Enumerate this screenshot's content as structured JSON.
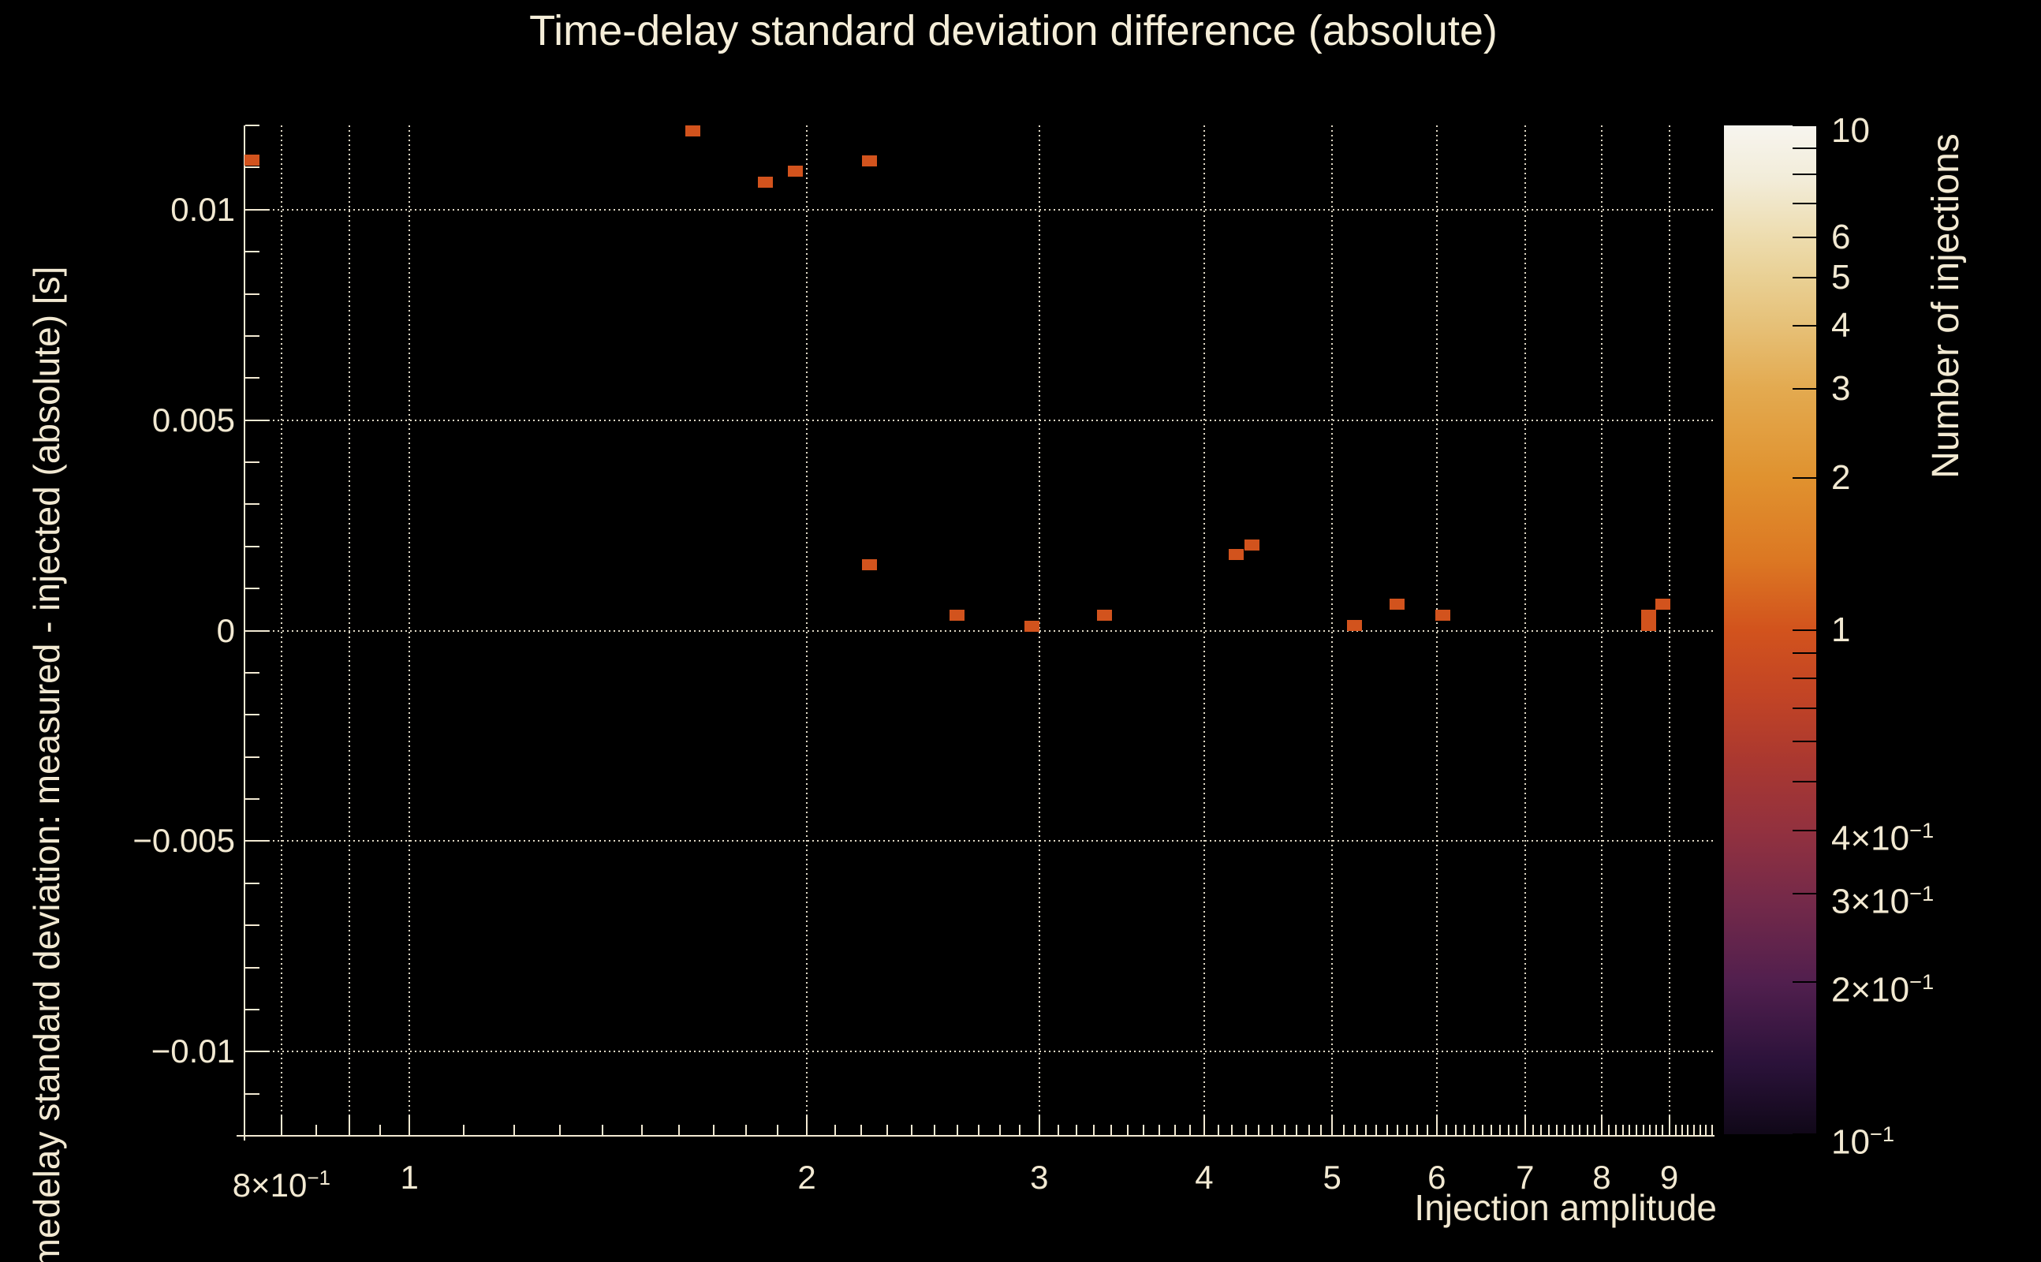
{
  "page": {
    "background": "#000000",
    "foreground": "#f2e9d2",
    "point_color": "#d2531d"
  },
  "chart_data": {
    "type": "heatmap",
    "title": "Time-delay standard deviation difference (absolute)",
    "xlabel": "Injection amplitude",
    "ylabel": "Timedelay standard deviation: measured - injected (absolute) [s]",
    "colorbar_label": "Number of injections",
    "x_scale": "log",
    "x_range": [
      0.75,
      9.74
    ],
    "y_scale": "linear",
    "y_range": [
      -0.012,
      0.012
    ],
    "color_scale": "log",
    "color_range": [
      0.1,
      10
    ],
    "grid": true,
    "x_gridlines": [
      0.8,
      0.9,
      1,
      2,
      3,
      4,
      5,
      6,
      7,
      8,
      9
    ],
    "x_tick_labels": [
      {
        "value": 0.8,
        "label": "8×10^−1"
      },
      {
        "value": 1,
        "label": "1"
      },
      {
        "value": 2,
        "label": "2"
      },
      {
        "value": 3,
        "label": "3"
      },
      {
        "value": 4,
        "label": "4"
      },
      {
        "value": 5,
        "label": "5"
      },
      {
        "value": 6,
        "label": "6"
      },
      {
        "value": 7,
        "label": "7"
      },
      {
        "value": 8,
        "label": "8"
      },
      {
        "value": 9,
        "label": "9"
      }
    ],
    "y_ticks": [
      {
        "value": 0.01,
        "label": "0.01"
      },
      {
        "value": 0.005,
        "label": "0.005"
      },
      {
        "value": 0,
        "label": "0"
      },
      {
        "value": -0.005,
        "label": "−0.005"
      },
      {
        "value": -0.01,
        "label": "−0.01"
      }
    ],
    "colorbar_ticks": [
      {
        "value": 10,
        "label": "10"
      },
      {
        "value": 9,
        "label": ""
      },
      {
        "value": 8,
        "label": ""
      },
      {
        "value": 7,
        "label": ""
      },
      {
        "value": 6,
        "label": "6"
      },
      {
        "value": 5,
        "label": "5"
      },
      {
        "value": 4,
        "label": "4"
      },
      {
        "value": 3,
        "label": "3"
      },
      {
        "value": 2,
        "label": "2"
      },
      {
        "value": 1,
        "label": "1"
      },
      {
        "value": 0.9,
        "label": ""
      },
      {
        "value": 0.8,
        "label": ""
      },
      {
        "value": 0.7,
        "label": ""
      },
      {
        "value": 0.6,
        "label": ""
      },
      {
        "value": 0.5,
        "label": ""
      },
      {
        "value": 0.4,
        "label": "4×10^−1"
      },
      {
        "value": 0.3,
        "label": "3×10^−1"
      },
      {
        "value": 0.2,
        "label": "2×10^−1"
      },
      {
        "value": 0.1,
        "label": "10^−1"
      }
    ],
    "bin_size_px": [
      19,
      14
    ],
    "points": [
      {
        "x": 0.76,
        "y": 0.01118,
        "count": 1
      },
      {
        "x": 1.64,
        "y": 0.01187,
        "count": 1
      },
      {
        "x": 1.86,
        "y": 0.01066,
        "count": 1
      },
      {
        "x": 1.96,
        "y": 0.01092,
        "count": 1
      },
      {
        "x": 2.23,
        "y": 0.01116,
        "count": 1
      },
      {
        "x": 2.23,
        "y": 0.00157,
        "count": 1
      },
      {
        "x": 2.6,
        "y": 0.00036,
        "count": 1
      },
      {
        "x": 2.96,
        "y": 0.00011,
        "count": 1
      },
      {
        "x": 3.36,
        "y": 0.00037,
        "count": 1
      },
      {
        "x": 4.23,
        "y": 0.0018,
        "count": 1
      },
      {
        "x": 4.35,
        "y": 0.00204,
        "count": 1
      },
      {
        "x": 5.2,
        "y": 0.00013,
        "count": 1
      },
      {
        "x": 5.6,
        "y": 0.00062,
        "count": 1
      },
      {
        "x": 6.06,
        "y": 0.00037,
        "count": 1
      },
      {
        "x": 8.68,
        "y": 0.00037,
        "count": 1
      },
      {
        "x": 8.68,
        "y": 0.00013,
        "count": 1
      },
      {
        "x": 8.9,
        "y": 0.00062,
        "count": 1
      }
    ],
    "colormap_stops": [
      [
        0.0,
        "#f7f5ef"
      ],
      [
        0.055,
        "#f2ecd8"
      ],
      [
        0.111,
        "#eddcae"
      ],
      [
        0.151,
        "#e9d094"
      ],
      [
        0.199,
        "#e6c077"
      ],
      [
        0.261,
        "#e3aa50"
      ],
      [
        0.349,
        "#e0922f"
      ],
      [
        0.43,
        "#dc7823"
      ],
      [
        0.5,
        "#d2531d"
      ],
      [
        0.565,
        "#c24425"
      ],
      [
        0.63,
        "#aa3830"
      ],
      [
        0.7,
        "#92313f"
      ],
      [
        0.765,
        "#762a49"
      ],
      [
        0.85,
        "#511f4e"
      ],
      [
        0.93,
        "#2b123a"
      ],
      [
        1.0,
        "#100818"
      ]
    ]
  }
}
